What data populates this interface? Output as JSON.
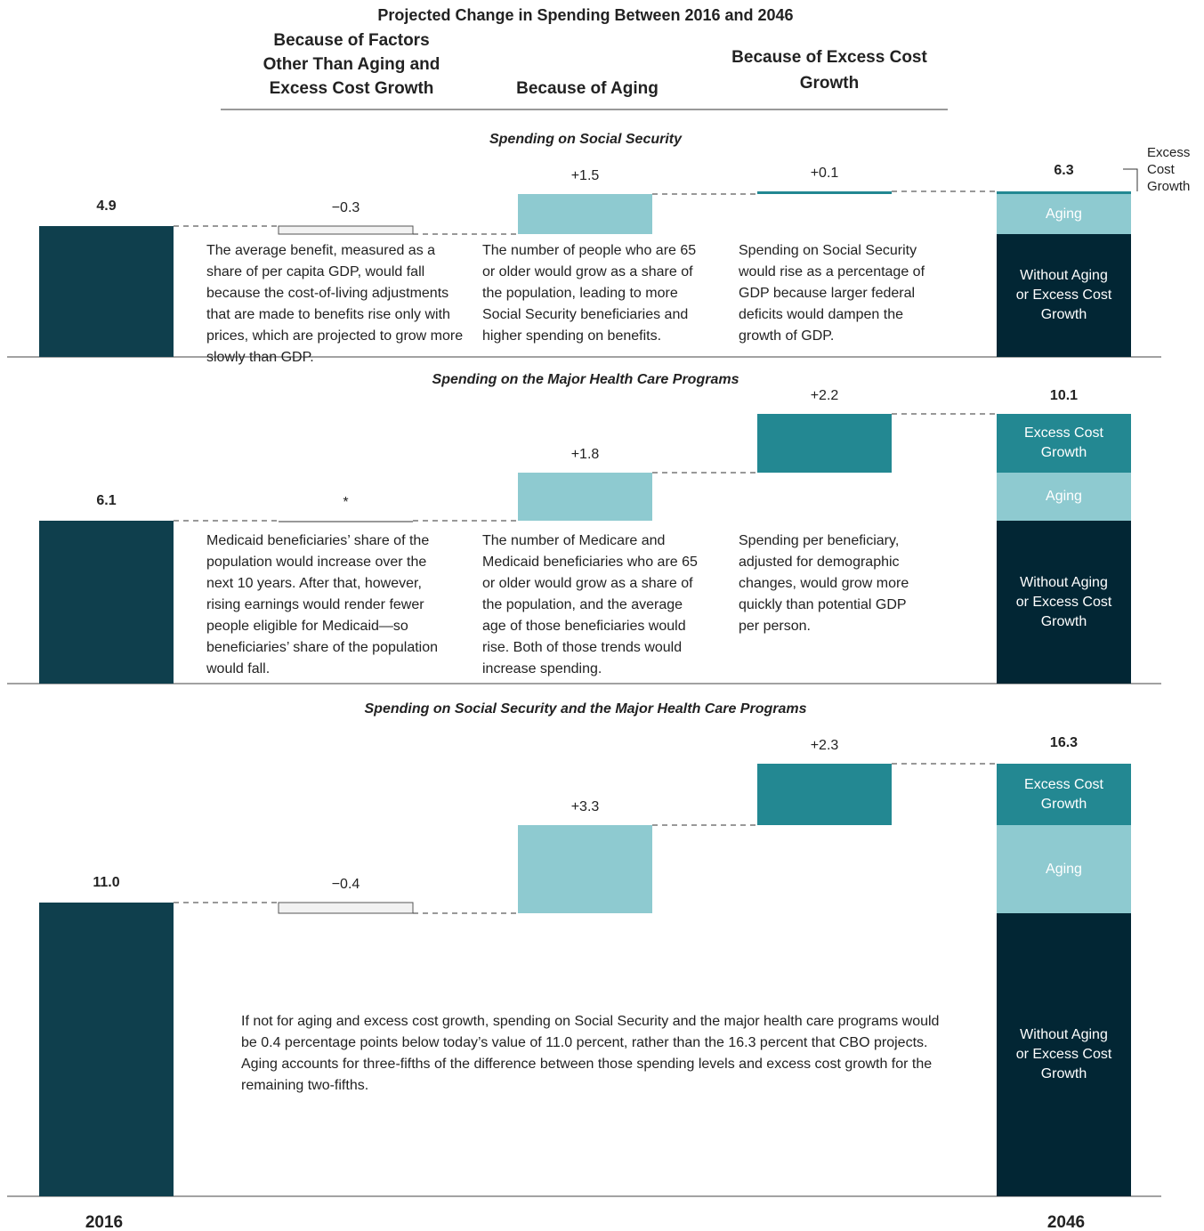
{
  "title": "Projected Change in Spending Between 2016 and 2046",
  "column_headers": [
    "Because of Factors Other Than Aging and Excess Cost Growth",
    "Because of Aging",
    "Because of Excess Cost Growth"
  ],
  "x_labels": [
    "2016",
    "2046"
  ],
  "chart_data": [
    {
      "type": "waterfall",
      "title": "Spending on Social Security",
      "start_value": 4.9,
      "start_value_label": "4.9",
      "values": [
        -0.3,
        1.5,
        0.1
      ],
      "value_labels": [
        "−0.3",
        "+1.5",
        "+0.1"
      ],
      "colors": [
        "#f2f2f2",
        "#8ecad0",
        "#238892"
      ],
      "end_value": 6.3,
      "end_value_label": "6.3",
      "end_segments": [
        {
          "name": "Without Aging or Excess Cost Growth",
          "value": 4.6,
          "color": "#022634"
        },
        {
          "name": "Aging",
          "value": 1.5,
          "color": "#8ecad0"
        },
        {
          "name": "Excess Cost Growth",
          "value": 0.1,
          "color": "#238892"
        }
      ],
      "notes": [
        "The average benefit, measured as a share of per capita GDP, would fall because the cost-of-living adjustments that are made to benefits rise only with prices, which are projected to grow more slowly than GDP.",
        "The number of people who are 65 or older would grow as a share of the population, leading to more Social Security beneficiaries and higher spending on benefits.",
        "Spending on Social Security would rise as a percentage of GDP because larger federal deficits would dampen the growth of GDP."
      ]
    },
    {
      "type": "waterfall",
      "title": "Spending on the Major Health Care Programs",
      "start_value": 6.1,
      "start_value_label": "6.1",
      "values": [
        0,
        1.8,
        2.2
      ],
      "value_labels": [
        "*",
        "+1.8",
        "+2.2"
      ],
      "colors": [
        "#999999",
        "#8ecad0",
        "#238892"
      ],
      "end_value": 10.1,
      "end_value_label": "10.1",
      "end_segments": [
        {
          "name": "Without Aging or Excess Cost Growth",
          "value": 6.1,
          "color": "#022634"
        },
        {
          "name": "Aging",
          "value": 1.8,
          "color": "#8ecad0"
        },
        {
          "name": "Excess Cost Growth",
          "value": 2.2,
          "color": "#238892"
        }
      ],
      "notes": [
        "Medicaid beneficiaries’ share of the population would increase over the next 10 years. After that, however, rising earnings would render fewer people eligible for Medicaid—so beneficiaries’ share of the population would fall.",
        "The number of Medicare and Medicaid beneficiaries who are 65 or older would grow as a share of the population, and the average age of those beneficiaries would rise. Both of those trends would increase spending.",
        "Spending per beneficiary, adjusted for demographic changes, would grow more quickly than potential GDP per person."
      ]
    },
    {
      "type": "waterfall",
      "title": "Spending on Social Security and the Major Health Care Programs",
      "start_value": 11.0,
      "start_value_label": "11.0",
      "values": [
        -0.4,
        3.3,
        2.3
      ],
      "value_labels": [
        "−0.4",
        "+3.3",
        "+2.3"
      ],
      "colors": [
        "#f2f2f2",
        "#8ecad0",
        "#238892"
      ],
      "end_value": 16.3,
      "end_value_label": "16.3",
      "end_segments": [
        {
          "name": "Without Aging or Excess Cost Growth",
          "value": 10.6,
          "color": "#022634"
        },
        {
          "name": "Aging",
          "value": 3.3,
          "color": "#8ecad0"
        },
        {
          "name": "Excess Cost Growth",
          "value": 2.3,
          "color": "#238892"
        }
      ],
      "notes": [
        "If not for aging and excess cost growth, spending on Social Security and the major health care programs would be 0.4 percentage points below today’s value of 11.0 percent, rather than the 16.3 percent that CBO projects. Aging accounts for three-fifths of the difference between those spending levels and excess cost growth for the remaining two-fifths."
      ]
    }
  ]
}
